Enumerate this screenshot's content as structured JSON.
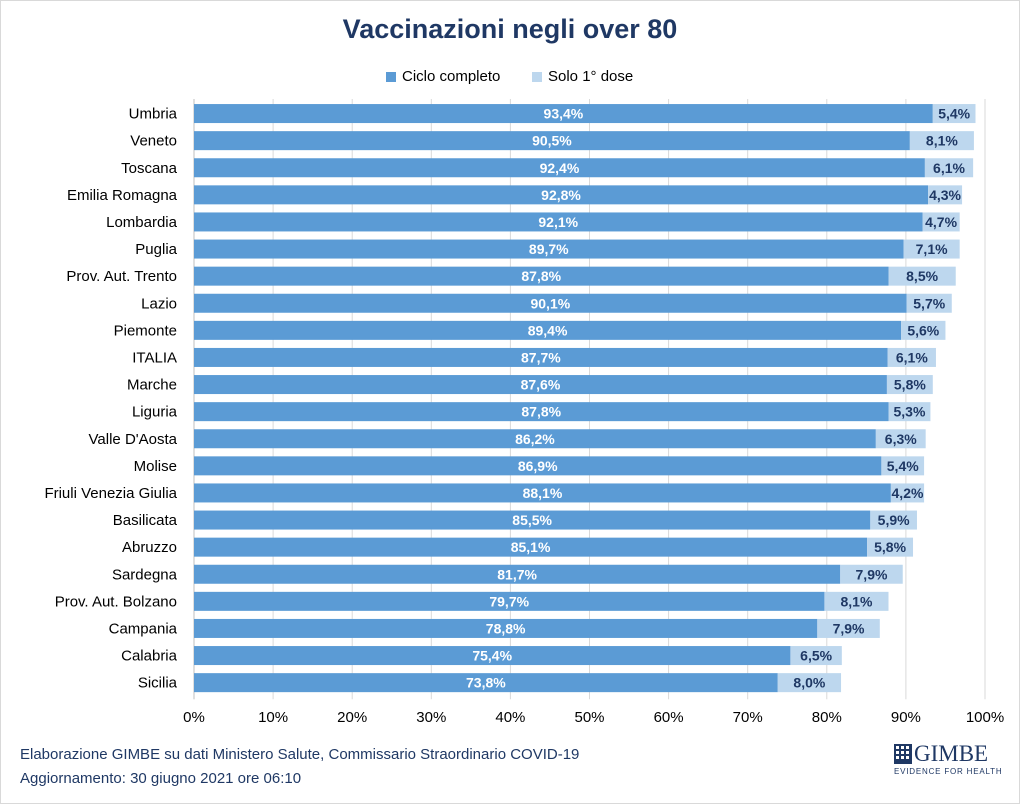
{
  "chart_data": {
    "type": "bar",
    "orientation": "horizontal",
    "stacked": true,
    "title": "Vaccinazioni negli over 80",
    "categories": [
      "Umbria",
      "Veneto",
      "Toscana",
      "Emilia Romagna",
      "Lombardia",
      "Puglia",
      "Prov. Aut. Trento",
      "Lazio",
      "Piemonte",
      "ITALIA",
      "Marche",
      "Liguria",
      "Valle D'Aosta",
      "Molise",
      "Friuli Venezia Giulia",
      "Basilicata",
      "Abruzzo",
      "Sardegna",
      "Prov. Aut. Bolzano",
      "Campania",
      "Calabria",
      "Sicilia"
    ],
    "series": [
      {
        "name": "Ciclo completo",
        "color": "#5b9bd5",
        "values": [
          93.4,
          90.5,
          92.4,
          92.8,
          92.1,
          89.7,
          87.8,
          90.1,
          89.4,
          87.7,
          87.6,
          87.8,
          86.2,
          86.9,
          88.1,
          85.5,
          85.1,
          81.7,
          79.7,
          78.8,
          75.4,
          73.8
        ],
        "labels": [
          "93,4%",
          "90,5%",
          "92,4%",
          "92,8%",
          "92,1%",
          "89,7%",
          "87,8%",
          "90,1%",
          "89,4%",
          "87,7%",
          "87,6%",
          "87,8%",
          "86,2%",
          "86,9%",
          "88,1%",
          "85,5%",
          "85,1%",
          "81,7%",
          "79,7%",
          "78,8%",
          "75,4%",
          "73,8%"
        ],
        "label_color": "#ffffff"
      },
      {
        "name": "Solo 1° dose",
        "color": "#bdd7ee",
        "values": [
          5.4,
          8.1,
          6.1,
          4.3,
          4.7,
          7.1,
          8.5,
          5.7,
          5.6,
          6.1,
          5.8,
          5.3,
          6.3,
          5.4,
          4.2,
          5.9,
          5.8,
          7.9,
          8.1,
          7.9,
          6.5,
          8.0
        ],
        "labels": [
          "5,4%",
          "8,1%",
          "6,1%",
          "4,3%",
          "4,7%",
          "7,1%",
          "8,5%",
          "5,7%",
          "5,6%",
          "6,1%",
          "5,8%",
          "5,3%",
          "6,3%",
          "5,4%",
          "4,2%",
          "5,9%",
          "5,8%",
          "7,9%",
          "8,1%",
          "7,9%",
          "6,5%",
          "8,0%"
        ],
        "label_color": "#1f3864"
      }
    ],
    "xlim": [
      0,
      100
    ],
    "xticks": [
      0,
      10,
      20,
      30,
      40,
      50,
      60,
      70,
      80,
      90,
      100
    ],
    "xtick_labels": [
      "0%",
      "10%",
      "20%",
      "30%",
      "40%",
      "50%",
      "60%",
      "70%",
      "80%",
      "90%",
      "100%"
    ],
    "grid": true,
    "legend_position": "top"
  },
  "footer": {
    "line1": "Elaborazione GIMBE su dati Ministero Salute, Commissario Straordinario COVID-19",
    "line2": "Aggiornamento:  30 giugno 2021 ore 06:10"
  },
  "logo": {
    "name": "GIMBE",
    "tagline": "EVIDENCE FOR HEALTH"
  }
}
